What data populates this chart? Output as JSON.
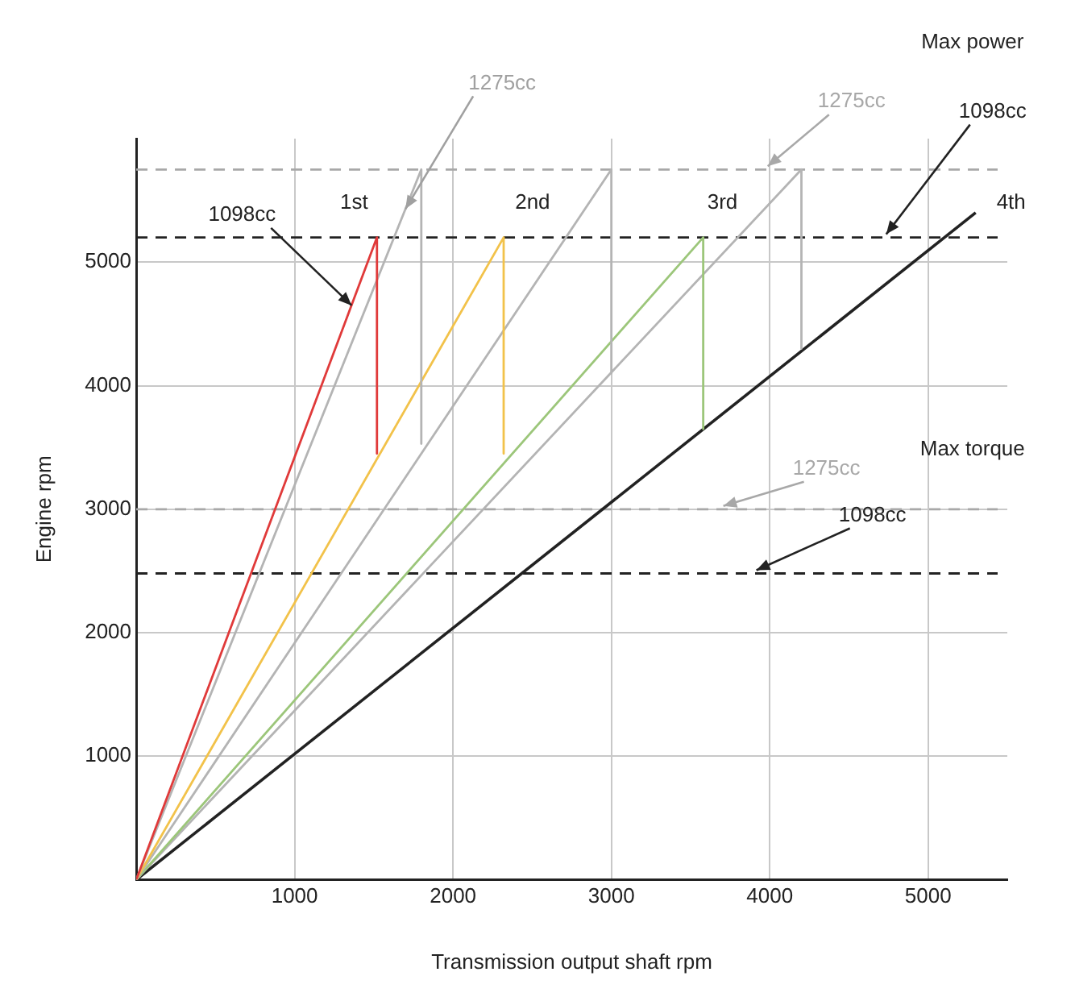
{
  "chart_data": {
    "type": "line",
    "xlabel": "Transmission output shaft rpm",
    "ylabel": "Engine rpm",
    "xlim": [
      0,
      5500
    ],
    "ylim": [
      0,
      6000
    ],
    "xticks": [
      1000,
      2000,
      3000,
      4000,
      5000
    ],
    "yticks": [
      1000,
      2000,
      3000,
      4000,
      5000
    ],
    "grid": true,
    "marker": "none",
    "line_style": "solid",
    "series": [
      {
        "color": "#e03a3a",
        "x": [
          0,
          1520,
          1520
        ],
        "values": [
          0,
          5200,
          3450
        ]
      },
      {
        "color": "#b4b4b4",
        "x": [
          0,
          1800,
          1800
        ],
        "values": [
          0,
          5750,
          3530
        ]
      },
      {
        "color": "#f2c24a",
        "x": [
          0,
          2320,
          2320
        ],
        "values": [
          0,
          5200,
          3450
        ]
      },
      {
        "color": "#b4b4b4",
        "x": [
          0,
          3000,
          3000
        ],
        "values": [
          0,
          5750,
          4100
        ]
      },
      {
        "color": "#9cc67a",
        "x": [
          0,
          3580,
          3580
        ],
        "values": [
          0,
          5200,
          3650
        ]
      },
      {
        "color": "#b4b4b4",
        "x": [
          0,
          4200,
          4200
        ],
        "values": [
          0,
          5750,
          4300
        ]
      },
      {
        "color": "#222222",
        "x": [
          0,
          5300
        ],
        "values": [
          0,
          5400
        ]
      }
    ],
    "ref_lines": [
      {
        "axis": "y",
        "value": 5750,
        "label": "1275cc",
        "color": "#a8a8a8",
        "line_style": "dashed"
      },
      {
        "axis": "y",
        "value": 5200,
        "label": "1098cc",
        "color": "#222222",
        "line_style": "dashed"
      },
      {
        "axis": "y",
        "value": 3000,
        "label": "1275cc",
        "color": "#a8a8a8",
        "line_style": "dashed"
      },
      {
        "axis": "y",
        "value": 2480,
        "label": "1098cc",
        "color": "#222222",
        "line_style": "dashed"
      }
    ],
    "annotations": [
      "Max power",
      "Max torque",
      {
        "text": "1275cc",
        "x": 1700,
        "y": 5430
      },
      {
        "text": "1098cc",
        "x": 1360,
        "y": 4650
      },
      "1st",
      "2nd",
      "3rd",
      {
        "text": "4th",
        "x": 5300,
        "y": 5400
      }
    ]
  }
}
